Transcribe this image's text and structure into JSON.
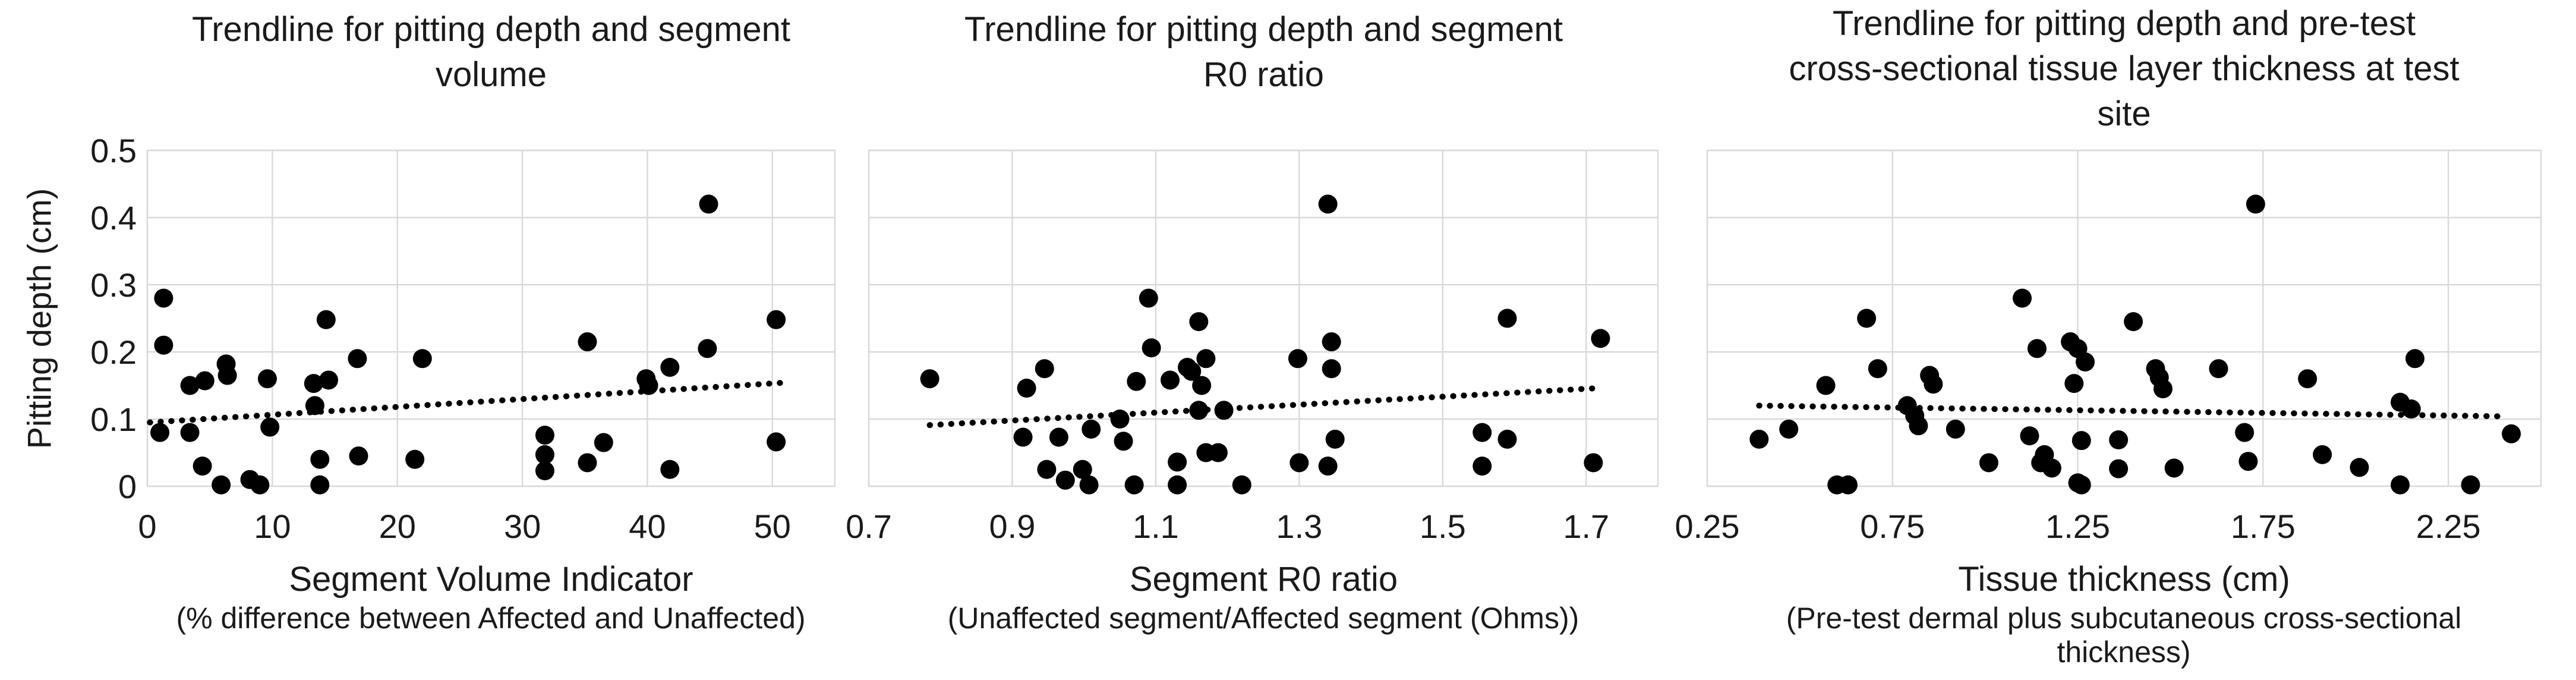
{
  "figure": {
    "background": "#ffffff"
  },
  "colors": {
    "point": "#000000",
    "trendline": "#000000",
    "gridline": "#d9d9d9",
    "plot_border": "#d9d9d9",
    "text": "#1a1a1a"
  },
  "y_axis": {
    "title": "Pitting depth (cm)",
    "tick_labels": [
      "0",
      "0.1",
      "0.2",
      "0.3",
      "0.4",
      "0.5"
    ]
  },
  "chart_data": [
    {
      "type": "scatter",
      "title": "Trendline for pitting depth and segment\nvolume",
      "xlabel": "Segment Volume Indicator",
      "xlabel_sub": "(% difference between Affected and Unaffected)",
      "ylabel": "Pitting depth (cm)",
      "xlim": [
        0,
        55
      ],
      "ylim": [
        0,
        0.5
      ],
      "grid": true,
      "legend": false,
      "x_ticks": [
        0,
        10,
        20,
        30,
        40,
        50
      ],
      "x_tick_labels": [
        "0",
        "10",
        "20",
        "30",
        "40",
        "50"
      ],
      "y_ticks": [
        0,
        0.1,
        0.2,
        0.3,
        0.4,
        0.5
      ],
      "points": [
        [
          1.3,
          0.28
        ],
        [
          1.3,
          0.21
        ],
        [
          1.0,
          0.08
        ],
        [
          3.4,
          0.15
        ],
        [
          3.4,
          0.08
        ],
        [
          4.6,
          0.157
        ],
        [
          6.3,
          0.182
        ],
        [
          6.4,
          0.165
        ],
        [
          4.4,
          0.03
        ],
        [
          5.9,
          0.002
        ],
        [
          8.2,
          0.01
        ],
        [
          9.0,
          0.002
        ],
        [
          9.6,
          0.16
        ],
        [
          9.8,
          0.088
        ],
        [
          13.3,
          0.153
        ],
        [
          14.5,
          0.158
        ],
        [
          13.4,
          0.12
        ],
        [
          14.3,
          0.248
        ],
        [
          13.8,
          0.04
        ],
        [
          13.8,
          0.002
        ],
        [
          16.8,
          0.19
        ],
        [
          16.9,
          0.045
        ],
        [
          22.0,
          0.19
        ],
        [
          21.4,
          0.04
        ],
        [
          31.8,
          0.076
        ],
        [
          31.8,
          0.047
        ],
        [
          31.8,
          0.023
        ],
        [
          35.2,
          0.215
        ],
        [
          35.2,
          0.035
        ],
        [
          36.5,
          0.065
        ],
        [
          39.9,
          0.16
        ],
        [
          40.1,
          0.15
        ],
        [
          41.8,
          0.177
        ],
        [
          41.8,
          0.025
        ],
        [
          44.9,
          0.42
        ],
        [
          44.8,
          0.205
        ],
        [
          50.3,
          0.248
        ],
        [
          50.3,
          0.066
        ]
      ],
      "trendline": {
        "style": "dotted",
        "x1": 0.2,
        "y1": 0.095,
        "x2": 50.8,
        "y2": 0.154
      }
    },
    {
      "type": "scatter",
      "title": "Trendline for pitting depth and segment\nR0 ratio",
      "xlabel": "Segment R0 ratio",
      "xlabel_sub": "(Unaffected segment/Affected segment (Ohms))",
      "ylabel": "Pitting depth (cm)",
      "xlim": [
        0.7,
        1.8
      ],
      "ylim": [
        0,
        0.5
      ],
      "grid": true,
      "legend": false,
      "x_ticks": [
        0.7,
        0.9,
        1.1,
        1.3,
        1.5,
        1.7
      ],
      "x_tick_labels": [
        "0.7",
        "0.9",
        "1.1",
        "1.3",
        "1.5",
        "1.7"
      ],
      "y_ticks": [
        0,
        0.1,
        0.2,
        0.3,
        0.4,
        0.5
      ],
      "points": [
        [
          0.785,
          0.16
        ],
        [
          0.915,
          0.073
        ],
        [
          0.92,
          0.146
        ],
        [
          0.945,
          0.175
        ],
        [
          0.948,
          0.025
        ],
        [
          0.965,
          0.073
        ],
        [
          0.974,
          0.009
        ],
        [
          0.998,
          0.025
        ],
        [
          1.007,
          0.002
        ],
        [
          1.01,
          0.085
        ],
        [
          1.05,
          0.1
        ],
        [
          1.055,
          0.067
        ],
        [
          1.07,
          0.002
        ],
        [
          1.073,
          0.156
        ],
        [
          1.09,
          0.28
        ],
        [
          1.094,
          0.206
        ],
        [
          1.12,
          0.158
        ],
        [
          1.13,
          0.036
        ],
        [
          1.13,
          0.002
        ],
        [
          1.144,
          0.177
        ],
        [
          1.15,
          0.171
        ],
        [
          1.16,
          0.245
        ],
        [
          1.164,
          0.15
        ],
        [
          1.17,
          0.19
        ],
        [
          1.16,
          0.113
        ],
        [
          1.195,
          0.113
        ],
        [
          1.17,
          0.05
        ],
        [
          1.187,
          0.05
        ],
        [
          1.22,
          0.002
        ],
        [
          1.298,
          0.19
        ],
        [
          1.3,
          0.035
        ],
        [
          1.34,
          0.42
        ],
        [
          1.34,
          0.03
        ],
        [
          1.345,
          0.215
        ],
        [
          1.345,
          0.175
        ],
        [
          1.35,
          0.07
        ],
        [
          1.555,
          0.08
        ],
        [
          1.555,
          0.03
        ],
        [
          1.59,
          0.25
        ],
        [
          1.59,
          0.07
        ],
        [
          1.71,
          0.035
        ],
        [
          1.72,
          0.22
        ]
      ],
      "trendline": {
        "style": "dotted",
        "x1": 0.785,
        "y1": 0.091,
        "x2": 1.715,
        "y2": 0.146
      }
    },
    {
      "type": "scatter",
      "title": "Trendline for pitting depth and pre-test\ncross-sectional tissue layer thickness at test\nsite",
      "xlabel": "Tissue thickness (cm)",
      "xlabel_sub": "(Pre-test dermal plus subcutaneous cross-sectional\nthickness)",
      "ylabel": "Pitting depth (cm)",
      "xlim": [
        0.25,
        2.5
      ],
      "ylim": [
        0,
        0.5
      ],
      "grid": true,
      "legend": false,
      "x_ticks": [
        0.25,
        0.75,
        1.25,
        1.75,
        2.25
      ],
      "x_tick_labels": [
        "0.25",
        "0.75",
        "1.25",
        "1.75",
        "2.25"
      ],
      "y_ticks": [
        0,
        0.1,
        0.2,
        0.3,
        0.4,
        0.5
      ],
      "points": [
        [
          0.39,
          0.07
        ],
        [
          0.47,
          0.085
        ],
        [
          0.57,
          0.15
        ],
        [
          0.6,
          0.002
        ],
        [
          0.63,
          0.002
        ],
        [
          0.68,
          0.25
        ],
        [
          0.71,
          0.175
        ],
        [
          0.79,
          0.12
        ],
        [
          0.81,
          0.105
        ],
        [
          0.82,
          0.09
        ],
        [
          0.85,
          0.165
        ],
        [
          0.86,
          0.152
        ],
        [
          0.92,
          0.085
        ],
        [
          1.01,
          0.035
        ],
        [
          1.1,
          0.28
        ],
        [
          1.12,
          0.075
        ],
        [
          1.14,
          0.205
        ],
        [
          1.15,
          0.035
        ],
        [
          1.16,
          0.047
        ],
        [
          1.18,
          0.027
        ],
        [
          1.23,
          0.215
        ],
        [
          1.24,
          0.153
        ],
        [
          1.25,
          0.205
        ],
        [
          1.25,
          0.005
        ],
        [
          1.26,
          0.002
        ],
        [
          1.26,
          0.068
        ],
        [
          1.27,
          0.185
        ],
        [
          1.36,
          0.069
        ],
        [
          1.36,
          0.026
        ],
        [
          1.4,
          0.245
        ],
        [
          1.46,
          0.175
        ],
        [
          1.47,
          0.162
        ],
        [
          1.48,
          0.145
        ],
        [
          1.51,
          0.027
        ],
        [
          1.63,
          0.175
        ],
        [
          1.7,
          0.08
        ],
        [
          1.71,
          0.037
        ],
        [
          1.73,
          0.42
        ],
        [
          1.87,
          0.16
        ],
        [
          1.91,
          0.047
        ],
        [
          2.01,
          0.028
        ],
        [
          2.12,
          0.125
        ],
        [
          2.15,
          0.115
        ],
        [
          2.12,
          0.002
        ],
        [
          2.16,
          0.19
        ],
        [
          2.31,
          0.002
        ],
        [
          2.42,
          0.078
        ]
      ],
      "trendline": {
        "style": "dotted",
        "x1": 0.39,
        "y1": 0.12,
        "x2": 2.4,
        "y2": 0.104
      }
    }
  ]
}
